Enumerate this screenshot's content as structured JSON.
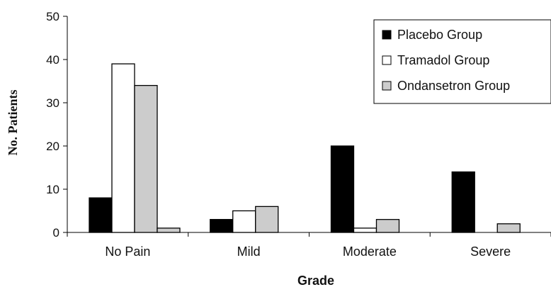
{
  "chart_data": {
    "type": "bar",
    "xlabel": "Grade",
    "ylabel": "No. Patients",
    "ylim": [
      0,
      50
    ],
    "yticks": [
      0,
      10,
      20,
      30,
      40,
      50
    ],
    "grid": false,
    "legend_position": "top-right",
    "categories": [
      "No Pain",
      "Mild",
      "Moderate",
      "Severe"
    ],
    "series": [
      {
        "name": "Placebo Group",
        "color": "#000000",
        "values": [
          8,
          3,
          20,
          14
        ]
      },
      {
        "name": "Tramadol Group",
        "color": "#ffffff",
        "values": [
          39,
          5,
          1,
          0
        ]
      },
      {
        "name": "Ondansetron Group",
        "color": "#cccccc",
        "values": [
          34,
          6,
          3,
          2
        ]
      },
      {
        "name": "",
        "color": "#cccccc",
        "values": [
          1,
          null,
          null,
          null
        ]
      }
    ]
  }
}
